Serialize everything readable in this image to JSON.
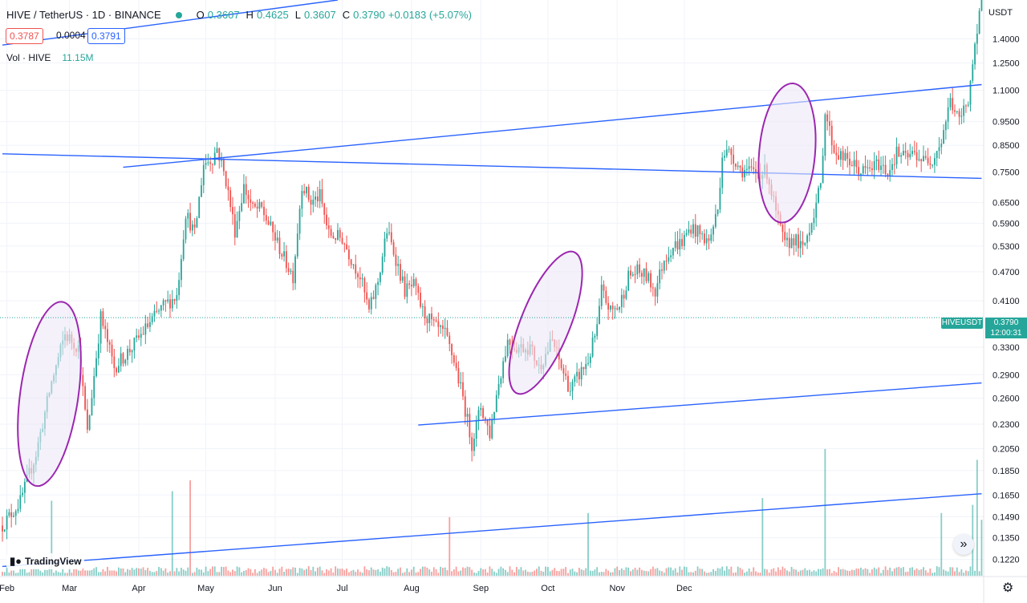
{
  "header": {
    "symbol": "HIVE / TetherUS · 1D · BINANCE",
    "o_label": "O",
    "o": "0.3607",
    "h_label": "H",
    "h": "0.4625",
    "l_label": "L",
    "l": "0.3607",
    "c_label": "C",
    "c": "0.3790",
    "change": "+0.0183 (+5.07%)",
    "bid": "0.3787",
    "spread": "0.0004",
    "ask": "0.3791",
    "vol_label": "Vol · HIVE",
    "vol_value": "11.15M",
    "currency": "USDT"
  },
  "price_tag": {
    "symbol": "HIVEUSDT",
    "price": "0.3790",
    "countdown": "12:00:31"
  },
  "logo_text": "TradingView",
  "chart_data": {
    "type": "candlestick",
    "scale": "log",
    "ylim": [
      0.113,
      1.68
    ],
    "y_ticks": [
      "1.4000",
      "1.2500",
      "1.1000",
      "0.9500",
      "0.8500",
      "0.7500",
      "0.6500",
      "0.5900",
      "0.5300",
      "0.4700",
      "0.4100",
      "0.3300",
      "0.2900",
      "0.2600",
      "0.2300",
      "0.2050",
      "0.1850",
      "0.1650",
      "0.1490",
      "0.1350",
      "0.1220"
    ],
    "x_ticks": [
      "Feb",
      "Mar",
      "Apr",
      "May",
      "Jun",
      "Jul",
      "Aug",
      "Sep",
      "Oct",
      "Nov",
      "Dec"
    ],
    "colors": {
      "up": "#26a69a",
      "down": "#ef5350",
      "trendline": "#2962ff",
      "ellipse": "#9c27b0",
      "ellipse_fill": "#ede7f6",
      "last_price": "#26a69a"
    },
    "last_price": 0.379,
    "anchors": [
      [
        0,
        0.143
      ],
      [
        8,
        0.16
      ],
      [
        15,
        0.2
      ],
      [
        22,
        0.28
      ],
      [
        28,
        0.35
      ],
      [
        34,
        0.33
      ],
      [
        38,
        0.22
      ],
      [
        44,
        0.38
      ],
      [
        50,
        0.3
      ],
      [
        58,
        0.33
      ],
      [
        66,
        0.37
      ],
      [
        72,
        0.4
      ],
      [
        78,
        0.42
      ],
      [
        82,
        0.62
      ],
      [
        86,
        0.56
      ],
      [
        90,
        0.78
      ],
      [
        94,
        0.8
      ],
      [
        96,
        0.84
      ],
      [
        100,
        0.72
      ],
      [
        104,
        0.57
      ],
      [
        108,
        0.7
      ],
      [
        112,
        0.63
      ],
      [
        116,
        0.63
      ],
      [
        122,
        0.55
      ],
      [
        126,
        0.5
      ],
      [
        130,
        0.46
      ],
      [
        134,
        0.71
      ],
      [
        138,
        0.65
      ],
      [
        142,
        0.67
      ],
      [
        146,
        0.56
      ],
      [
        152,
        0.55
      ],
      [
        156,
        0.5
      ],
      [
        160,
        0.46
      ],
      [
        164,
        0.39
      ],
      [
        168,
        0.45
      ],
      [
        172,
        0.57
      ],
      [
        176,
        0.5
      ],
      [
        180,
        0.43
      ],
      [
        184,
        0.44
      ],
      [
        188,
        0.39
      ],
      [
        194,
        0.36
      ],
      [
        198,
        0.35
      ],
      [
        202,
        0.31
      ],
      [
        206,
        0.26
      ],
      [
        210,
        0.21
      ],
      [
        214,
        0.25
      ],
      [
        218,
        0.22
      ],
      [
        222,
        0.28
      ],
      [
        226,
        0.34
      ],
      [
        230,
        0.33
      ],
      [
        236,
        0.33
      ],
      [
        240,
        0.3
      ],
      [
        246,
        0.34
      ],
      [
        250,
        0.3
      ],
      [
        254,
        0.27
      ],
      [
        258,
        0.29
      ],
      [
        262,
        0.31
      ],
      [
        266,
        0.36
      ],
      [
        268,
        0.43
      ],
      [
        272,
        0.39
      ],
      [
        276,
        0.4
      ],
      [
        280,
        0.46
      ],
      [
        284,
        0.47
      ],
      [
        288,
        0.46
      ],
      [
        292,
        0.43
      ],
      [
        296,
        0.5
      ],
      [
        300,
        0.53
      ],
      [
        304,
        0.54
      ],
      [
        308,
        0.58
      ],
      [
        312,
        0.56
      ],
      [
        316,
        0.54
      ],
      [
        320,
        0.63
      ],
      [
        322,
        0.82
      ],
      [
        326,
        0.82
      ],
      [
        330,
        0.76
      ],
      [
        334,
        0.75
      ],
      [
        338,
        0.75
      ],
      [
        342,
        0.75
      ],
      [
        346,
        0.62
      ],
      [
        350,
        0.53
      ],
      [
        354,
        0.55
      ],
      [
        358,
        0.52
      ],
      [
        362,
        0.6
      ],
      [
        366,
        0.7
      ],
      [
        368,
        1.0
      ],
      [
        372,
        0.83
      ],
      [
        376,
        0.8
      ],
      [
        380,
        0.78
      ],
      [
        384,
        0.75
      ],
      [
        388,
        0.76
      ],
      [
        392,
        0.78
      ],
      [
        396,
        0.75
      ],
      [
        400,
        0.82
      ],
      [
        404,
        0.8
      ],
      [
        408,
        0.82
      ],
      [
        412,
        0.79
      ],
      [
        416,
        0.8
      ],
      [
        420,
        0.87
      ],
      [
        424,
        1.05
      ],
      [
        428,
        0.95
      ],
      [
        432,
        1.06
      ],
      [
        434,
        1.25
      ],
      [
        436,
        1.4
      ],
      [
        438,
        1.75
      ]
    ],
    "volume_peaks": [
      [
        22,
        0.55
      ],
      [
        76,
        0.62
      ],
      [
        84,
        0.7
      ],
      [
        200,
        0.43
      ],
      [
        262,
        0.46
      ],
      [
        340,
        0.57
      ],
      [
        368,
        0.93
      ],
      [
        420,
        0.46
      ],
      [
        434,
        0.52
      ],
      [
        436,
        0.85
      ],
      [
        438,
        0.41
      ]
    ],
    "trendlines": [
      {
        "from": [
          0,
          0.817
        ],
        "to": [
          438,
          0.728
        ]
      },
      {
        "from": [
          54,
          0.767
        ],
        "to": [
          438,
          1.13
        ]
      },
      {
        "from": [
          186,
          0.229
        ],
        "to": [
          438,
          0.279
        ]
      },
      {
        "from": [
          0,
          0.118
        ],
        "to": [
          438,
          0.166
        ]
      },
      {
        "from": [
          0,
          1.36
        ],
        "to": [
          150,
          1.68
        ]
      }
    ],
    "ellipses": [
      {
        "center": [
          21,
          0.265
        ],
        "width_days": 26,
        "ratio": 3.2,
        "tilt_deg": 8
      },
      {
        "center": [
          243,
          0.37
        ],
        "width_days": 22,
        "ratio": 3.1,
        "tilt_deg": 22
      },
      {
        "center": [
          351,
          0.82
        ],
        "width_days": 25,
        "ratio": 2.5,
        "tilt_deg": 5
      }
    ]
  }
}
